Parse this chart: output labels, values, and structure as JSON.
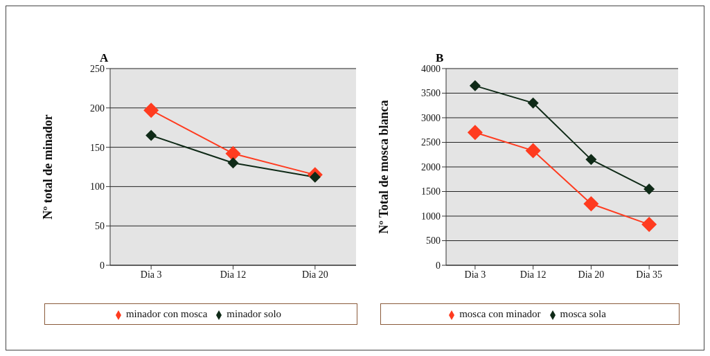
{
  "chart_data": [
    {
      "type": "line",
      "title": "A",
      "ylabel": "Nº total de minador",
      "categories": [
        "Dia 3",
        "Dia 12",
        "Dia 20"
      ],
      "series": [
        {
          "name": "minador con mosca",
          "color": "#ff3b1f",
          "values": [
            197,
            142,
            115
          ]
        },
        {
          "name": "minador solo",
          "color": "#0f2a17",
          "values": [
            165,
            130,
            112
          ]
        }
      ],
      "ylim": [
        0,
        250
      ],
      "yticks": [
        0,
        50,
        100,
        150,
        200,
        250
      ],
      "grid": "y",
      "legend": "bottom",
      "marker": "diamond",
      "line_style": "solid"
    },
    {
      "type": "line",
      "title": "B",
      "ylabel": "Nº Total de mosca blanca",
      "categories": [
        "Dia 3",
        "Dia 12",
        "Dia 20",
        "Dia 35"
      ],
      "series": [
        {
          "name": "mosca con minador",
          "color": "#ff3b1f",
          "values": [
            2700,
            2330,
            1250,
            830
          ]
        },
        {
          "name": "mosca sola",
          "color": "#0f2a17",
          "values": [
            3650,
            3300,
            2150,
            1550
          ]
        }
      ],
      "ylim": [
        0,
        4000
      ],
      "yticks": [
        0,
        500,
        1000,
        1500,
        2000,
        2500,
        3000,
        3500,
        4000
      ],
      "grid": "y",
      "legend": "bottom",
      "marker": "diamond",
      "line_style": "solid"
    }
  ]
}
